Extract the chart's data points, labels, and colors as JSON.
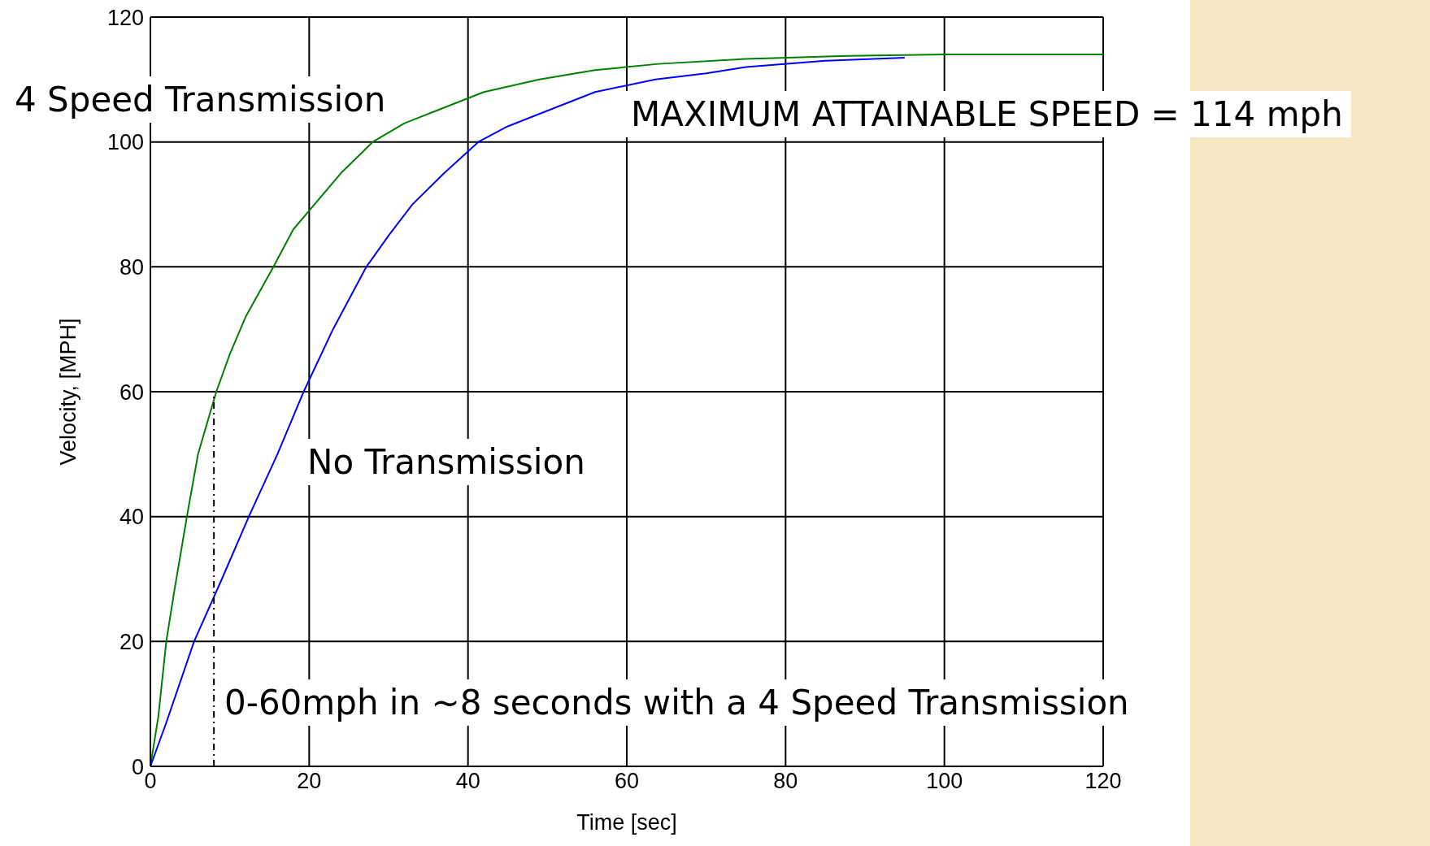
{
  "chart_data": {
    "type": "line",
    "xlabel": "Time [sec]",
    "ylabel": "Velocity, [MPH]",
    "xlim": [
      0,
      120
    ],
    "xticks": [
      0,
      20,
      40,
      60,
      80,
      100,
      120
    ],
    "ylim": [
      0,
      120
    ],
    "yticks": [
      0,
      20,
      40,
      60,
      80,
      100,
      120
    ],
    "grid": true,
    "marker": "none",
    "annotations": [
      "MAXIMUM ATTAINABLE SPEED = 114 mph",
      "0-60mph in ~8 seconds with a 4 Speed Transmission"
    ],
    "series": [
      {
        "name": "4 Speed Transmission",
        "color": "#008000",
        "x": [
          0,
          1,
          2,
          3,
          4.6,
          6,
          8.3,
          10,
          12,
          15.5,
          18,
          20,
          24,
          28,
          32,
          36,
          42,
          49,
          56,
          64,
          75,
          88,
          100,
          120
        ],
        "values": [
          0,
          8,
          20,
          28,
          40,
          50,
          60,
          66,
          72,
          80,
          86,
          89,
          95,
          100,
          103,
          105,
          108,
          110,
          111.5,
          112.5,
          113.3,
          113.8,
          114,
          114
        ]
      },
      {
        "name": "No Transmission",
        "color": "#0000ff",
        "x": [
          0,
          2,
          5.5,
          9,
          12.4,
          16,
          19.3,
          23,
          27.2,
          30,
          33,
          37,
          41.3,
          45,
          50,
          56,
          63.6,
          70,
          75,
          85,
          95
        ],
        "values": [
          0,
          7,
          20,
          30,
          40,
          50,
          60,
          70,
          80,
          85,
          90,
          95,
          100,
          102.5,
          105,
          108,
          110,
          111,
          112,
          113,
          113.5
        ]
      },
      {
        "color": "#000000",
        "x": [
          8,
          8
        ],
        "values": [
          0,
          60
        ],
        "line_style": "dashed"
      }
    ]
  }
}
